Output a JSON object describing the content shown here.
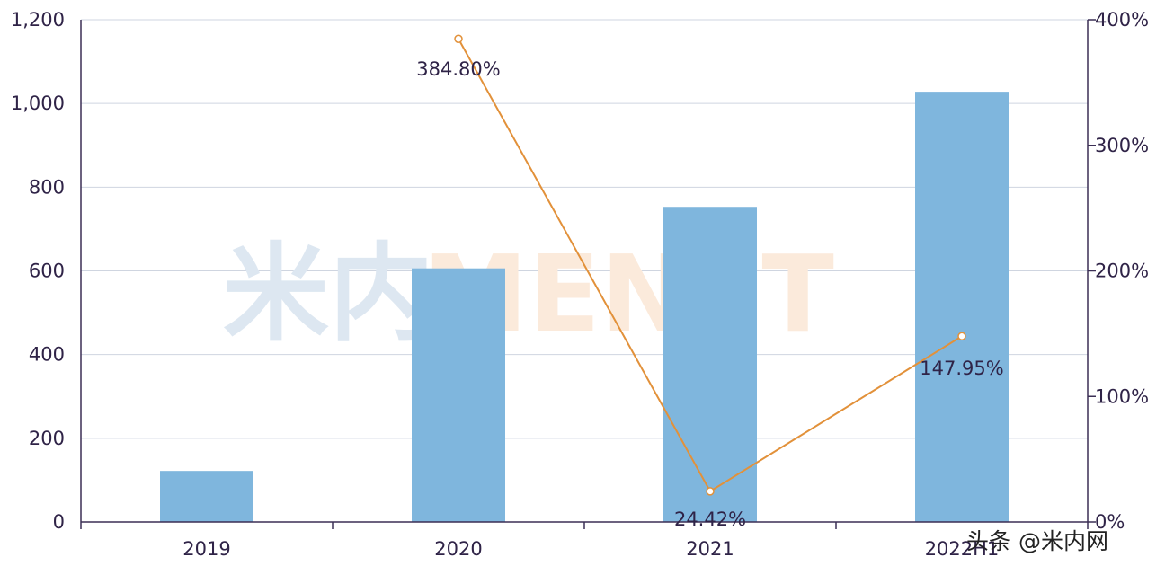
{
  "chart_data": {
    "type": "bar",
    "categories": [
      "2019",
      "2020",
      "2021",
      "2022H1"
    ],
    "series": [
      {
        "type": "bar",
        "values": [
          122,
          606,
          753,
          1028
        ],
        "color": "#7fb6dd"
      },
      {
        "type": "line",
        "axis": "right",
        "values": [
          null,
          384.8,
          24.42,
          147.95
        ],
        "labels": [
          "",
          "384.80%",
          "24.42%",
          "147.95%"
        ],
        "color": "#e2913a"
      }
    ],
    "ylim": [
      0,
      1200
    ],
    "yticks": [
      "0",
      "200",
      "400",
      "600",
      "800",
      "1,000",
      "1,200"
    ],
    "y2lim": [
      0,
      400
    ],
    "y2ticks": [
      "0%",
      "100%",
      "200%",
      "300%",
      "400%"
    ],
    "grid": true
  },
  "watermark": {
    "cn": "米内",
    "en": "MENET",
    "cn_color": "#dde7f1",
    "en_color": "#fbeadb"
  },
  "credit": "头条 @米内网"
}
